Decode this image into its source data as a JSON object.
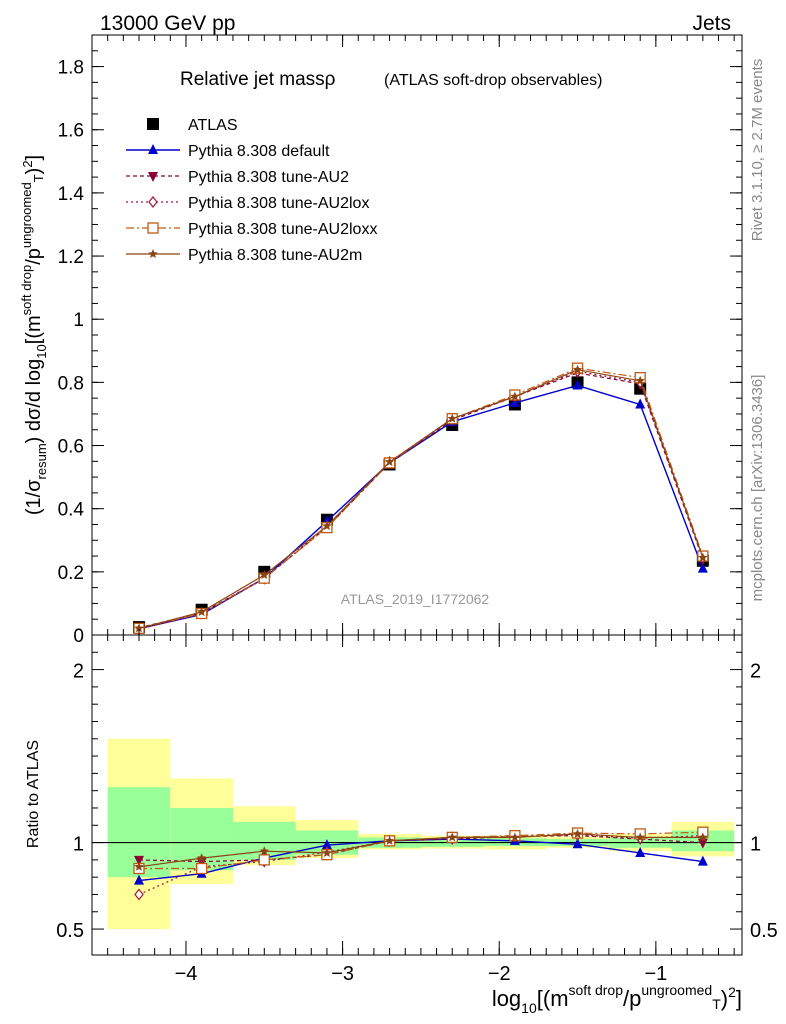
{
  "header": {
    "left": "13000 GeV pp",
    "right": "Jets"
  },
  "side_labels": {
    "rivet": "Rivet 3.1.10, ≥ 2.7M events",
    "mcplots": "mcplots.cern.ch [arXiv:1306.3436]"
  },
  "colors": {
    "ATLAS": "#000000",
    "Pythia 8.308 default": "#0000cc",
    "Pythia 8.308 tune-AU2": "#8b0038",
    "Pythia 8.308 tune-AU2lox": "#a0143c",
    "Pythia 8.308 tune-AU2loxx": "#c05a14",
    "Pythia 8.308 tune-AU2m": "#8b4513",
    "band_inner": "#99ff99",
    "band_outer": "#ffff99"
  },
  "chart_data": [
    {
      "type": "line",
      "title": "Relative jet massρ",
      "subtitle": "(ATLAS soft-drop observables)",
      "watermark": "ATLAS_2019_I1772062",
      "ylabel": "(1/σresum) dσ/d log10[(msoft drop/pTungroomed)2]",
      "xlim": [
        -4.6,
        -0.45
      ],
      "ylim": [
        0,
        1.9
      ],
      "yticks": [
        0,
        0.2,
        0.4,
        0.6,
        0.8,
        1,
        1.2,
        1.4,
        1.6,
        1.8
      ],
      "ytick_labels": [
        "0",
        "0.2",
        "0.4",
        "0.6",
        "0.8",
        "1",
        "1.2",
        "1.4",
        "1.6",
        "1.8"
      ],
      "legend_position": "top-left",
      "x": [
        -4.3,
        -3.9,
        -3.5,
        -3.1,
        -2.7,
        -2.3,
        -1.9,
        -1.5,
        -1.1,
        -0.7
      ],
      "series": [
        {
          "name": "ATLAS",
          "marker": "square",
          "values": [
            0.025,
            0.08,
            0.2,
            0.365,
            0.54,
            0.665,
            0.73,
            0.8,
            0.78,
            0.235
          ]
        },
        {
          "name": "Pythia 8.308 default",
          "marker": "triangle-up",
          "values": [
            0.02,
            0.065,
            0.18,
            0.36,
            0.545,
            0.675,
            0.735,
            0.79,
            0.73,
            0.21
          ]
        },
        {
          "name": "Pythia 8.308 tune-AU2",
          "marker": "triangle-down",
          "values": [
            0.023,
            0.07,
            0.18,
            0.34,
            0.545,
            0.68,
            0.755,
            0.83,
            0.795,
            0.24
          ]
        },
        {
          "name": "Pythia 8.308 tune-AU2lox",
          "marker": "diamond-open",
          "values": [
            0.018,
            0.068,
            0.178,
            0.345,
            0.548,
            0.685,
            0.755,
            0.835,
            0.8,
            0.245
          ]
        },
        {
          "name": "Pythia 8.308 tune-AU2loxx",
          "marker": "square-open",
          "values": [
            0.021,
            0.068,
            0.18,
            0.34,
            0.545,
            0.685,
            0.76,
            0.845,
            0.815,
            0.25
          ]
        },
        {
          "name": "Pythia 8.308 tune-AU2m",
          "marker": "star",
          "values": [
            0.021,
            0.073,
            0.19,
            0.345,
            0.548,
            0.685,
            0.755,
            0.84,
            0.805,
            0.245
          ]
        }
      ]
    },
    {
      "type": "line",
      "ylabel": "Ratio to ATLAS",
      "xlabel": "log10[(msoft drop/pTungroomed)2]",
      "xlim": [
        -4.6,
        -0.45
      ],
      "ylim": [
        0.35,
        2.2
      ],
      "reference_line": 1,
      "xticks": [
        -4,
        -3,
        -2,
        -1
      ],
      "xtick_labels": [
        "−4",
        "−3",
        "−2",
        "−1"
      ],
      "yticks": [
        0.5,
        1,
        2
      ],
      "ytick_labels": [
        "0.5",
        "1",
        "2"
      ],
      "bin_edges": [
        -4.5,
        -4.1,
        -3.7,
        -3.3,
        -2.9,
        -2.5,
        -2.1,
        -1.7,
        -1.3,
        -0.9,
        -0.5
      ],
      "band_inner": [
        [
          0.8,
          1.32
        ],
        [
          0.84,
          1.2
        ],
        [
          0.9,
          1.12
        ],
        [
          0.93,
          1.07
        ],
        [
          0.97,
          1.03
        ],
        [
          0.975,
          1.025
        ],
        [
          0.98,
          1.025
        ],
        [
          0.98,
          1.02
        ],
        [
          0.97,
          1.03
        ],
        [
          0.95,
          1.07
        ]
      ],
      "band_outer": [
        [
          0.5,
          1.6
        ],
        [
          0.76,
          1.37
        ],
        [
          0.87,
          1.21
        ],
        [
          0.91,
          1.13
        ],
        [
          0.96,
          1.05
        ],
        [
          0.965,
          1.04
        ],
        [
          0.96,
          1.04
        ],
        [
          0.97,
          1.035
        ],
        [
          0.95,
          1.05
        ],
        [
          0.92,
          1.12
        ]
      ],
      "x": [
        -4.3,
        -3.9,
        -3.5,
        -3.1,
        -2.7,
        -2.3,
        -1.9,
        -1.5,
        -1.1,
        -0.7
      ],
      "series": [
        {
          "name": "Pythia 8.308 default",
          "marker": "triangle-up",
          "values": [
            0.78,
            0.82,
            0.91,
            0.985,
            1.01,
            1.02,
            1.01,
            0.99,
            0.94,
            0.89
          ]
        },
        {
          "name": "Pythia 8.308 tune-AU2",
          "marker": "triangle-down",
          "values": [
            0.9,
            0.89,
            0.9,
            0.93,
            1.01,
            1.02,
            1.035,
            1.04,
            1.02,
            1.0
          ]
        },
        {
          "name": "Pythia 8.308 tune-AU2lox",
          "marker": "diamond-open",
          "values": [
            0.7,
            0.86,
            0.89,
            0.945,
            1.01,
            1.03,
            1.035,
            1.045,
            1.025,
            1.04
          ]
        },
        {
          "name": "Pythia 8.308 tune-AU2loxx",
          "marker": "square-open",
          "values": [
            0.85,
            0.85,
            0.9,
            0.93,
            1.01,
            1.03,
            1.04,
            1.055,
            1.05,
            1.06
          ]
        },
        {
          "name": "Pythia 8.308 tune-AU2m",
          "marker": "star",
          "values": [
            0.86,
            0.91,
            0.95,
            0.94,
            1.01,
            1.03,
            1.03,
            1.05,
            1.03,
            1.03
          ]
        }
      ]
    }
  ]
}
